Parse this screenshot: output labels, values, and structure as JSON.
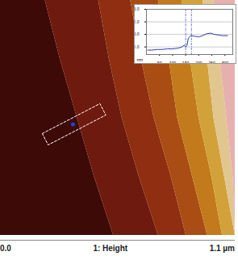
{
  "chart_data": [
    {
      "type": "image",
      "title": "1: Height",
      "xlim": [
        0,
        1.1
      ],
      "ylim": [
        0,
        1.1
      ],
      "xticks": [
        {
          "value": 0,
          "label": "0.0"
        },
        {
          "value": 1.1,
          "label": "1.1 µm"
        }
      ],
      "tick_labels": "x",
      "y_samples": [
        0,
        0.275,
        0.55,
        0.825,
        1.1
      ],
      "step_edges": [
        [
          0.53,
          0.44,
          0.36,
          0.28,
          0.21
        ],
        [
          0.74,
          0.65,
          0.57,
          0.51,
          0.46
        ],
        [
          0.87,
          0.8,
          0.72,
          0.66,
          0.61
        ],
        [
          0.97,
          0.9,
          0.83,
          0.79,
          0.74
        ],
        [
          1.04,
          0.99,
          0.93,
          0.89,
          0.85
        ],
        [
          1.1,
          1.05,
          1.0,
          0.97,
          0.95
        ],
        [
          1.1,
          1.09,
          1.06,
          1.03,
          1.0
        ]
      ],
      "colors": [
        "#3d0a08",
        "#6e1a0e",
        "#8f2e10",
        "#a94d14",
        "#c27a1c",
        "#d3a13a",
        "#e2c690",
        "#e6b0ae"
      ],
      "profile": {
        "from": [
          0.21,
          0.45
        ],
        "to": [
          0.48,
          0.59
        ],
        "marker_point": [
          0.34,
          0.52
        ],
        "color": "#2a3fd0"
      }
    },
    {
      "type": "line",
      "xlim": [
        0,
        330
      ],
      "ylim": [
        -1.6,
        2
      ],
      "xticks": [
        50,
        100,
        150,
        200,
        250,
        300
      ],
      "yticks": [
        -1,
        0,
        1,
        2
      ],
      "y_label": "nm",
      "color": "#2a3fb0",
      "x": [
        5,
        20,
        40,
        60,
        80,
        100,
        120,
        135,
        145,
        150,
        155,
        160,
        170,
        185,
        200,
        215,
        230,
        245,
        260,
        275,
        290,
        310
      ],
      "values": [
        -1.25,
        -1.25,
        -1.2,
        -1.2,
        -1.15,
        -1.15,
        -1.1,
        -1.0,
        -0.85,
        -1.0,
        -0.9,
        -0.3,
        -0.1,
        -0.15,
        -0.2,
        -0.1,
        0.05,
        0.1,
        0.0,
        -0.05,
        -0.1,
        -0.1
      ],
      "cursors": [
        150,
        172
      ]
    }
  ]
}
